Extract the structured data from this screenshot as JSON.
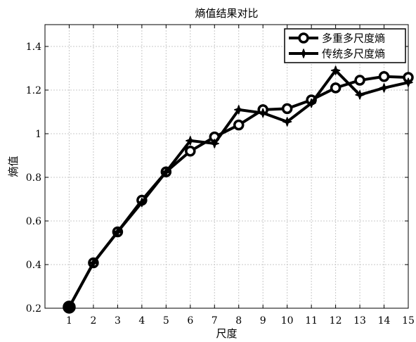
{
  "chart_data": {
    "type": "line",
    "title": "熵值结果对比",
    "xlabel": "尺度",
    "ylabel": "熵值",
    "x": [
      1,
      2,
      3,
      4,
      5,
      6,
      7,
      8,
      9,
      10,
      11,
      12,
      13,
      14,
      15
    ],
    "xlim": [
      0,
      15
    ],
    "ylim": [
      0.2,
      1.5
    ],
    "xticks": [
      1,
      2,
      3,
      4,
      5,
      6,
      7,
      8,
      9,
      10,
      11,
      12,
      13,
      14,
      15
    ],
    "yticks": [
      0.2,
      0.4,
      0.6,
      0.8,
      1,
      1.2,
      1.4
    ],
    "ytick_labels": [
      "0.2",
      "0.4",
      "0.6",
      "0.8",
      "1",
      "1.2",
      "1.4"
    ],
    "grid": true,
    "legend_position": "top-right",
    "series": [
      {
        "name": "多重多尺度熵",
        "marker": "circle",
        "color": "#000000",
        "values": [
          0.205,
          0.408,
          0.55,
          0.695,
          0.825,
          0.92,
          0.985,
          1.04,
          1.11,
          1.115,
          1.155,
          1.21,
          1.245,
          1.262,
          1.258
        ]
      },
      {
        "name": "传统多尺度熵",
        "marker": "star",
        "color": "#000000",
        "values": [
          0.205,
          0.408,
          0.55,
          0.685,
          0.825,
          0.968,
          0.955,
          1.11,
          1.095,
          1.055,
          1.14,
          1.29,
          1.178,
          1.21,
          1.235
        ]
      }
    ]
  }
}
